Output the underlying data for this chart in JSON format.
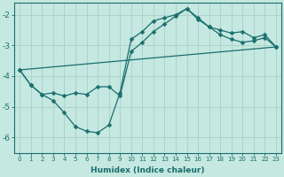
{
  "xlabel": "Humidex (Indice chaleur)",
  "bg_color": "#c5e8e0",
  "grid_color": "#aad4cc",
  "line_color": "#1a6e6e",
  "xlim": [
    -0.5,
    23.5
  ],
  "ylim": [
    -6.5,
    -1.6
  ],
  "yticks": [
    -6,
    -5,
    -4,
    -3,
    -2
  ],
  "xticks": [
    0,
    1,
    2,
    3,
    4,
    5,
    6,
    7,
    8,
    9,
    10,
    11,
    12,
    13,
    14,
    15,
    16,
    17,
    18,
    19,
    20,
    21,
    22,
    23
  ],
  "line1_x": [
    0,
    1,
    2,
    3,
    4,
    5,
    6,
    7,
    8,
    9,
    10,
    11,
    12,
    13,
    14,
    15,
    16,
    17,
    18,
    19,
    20,
    21,
    22,
    23
  ],
  "line1_y": [
    -3.8,
    -4.3,
    -4.6,
    -4.8,
    -5.2,
    -5.65,
    -5.8,
    -5.85,
    -5.6,
    -4.55,
    -2.8,
    -2.55,
    -2.2,
    -2.1,
    -2.0,
    -1.8,
    -2.15,
    -2.4,
    -2.5,
    -2.6,
    -2.55,
    -2.75,
    -2.65,
    -3.05
  ],
  "line2_x": [
    0,
    23
  ],
  "line2_y": [
    -3.8,
    -3.05
  ],
  "line3_x": [
    0,
    1,
    2,
    3,
    4,
    5,
    6,
    7,
    8,
    9,
    10,
    11,
    12,
    13,
    14,
    15,
    16,
    17,
    18,
    19,
    20,
    21,
    22,
    23
  ],
  "line3_y": [
    -3.8,
    -4.3,
    -4.6,
    -4.55,
    -4.65,
    -4.55,
    -4.6,
    -4.35,
    -4.35,
    -4.65,
    -3.2,
    -2.9,
    -2.55,
    -2.3,
    -2.05,
    -1.8,
    -2.1,
    -2.4,
    -2.65,
    -2.8,
    -2.9,
    -2.85,
    -2.75,
    -3.05
  ]
}
